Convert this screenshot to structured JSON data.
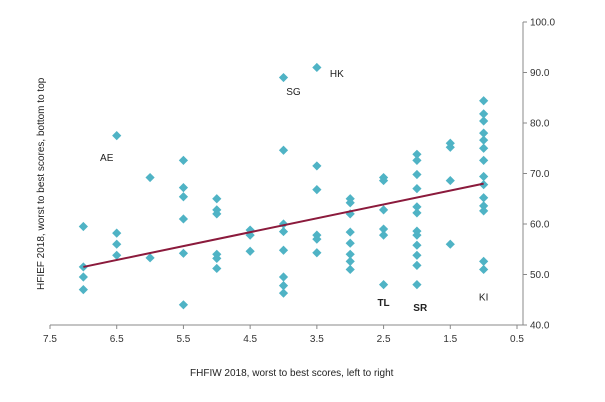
{
  "chart_data": {
    "type": "scatter",
    "xlabel": "FHFIW 2018, worst to best scores, left to right",
    "ylabel": "HFIEF 2018, worst to best scores, bottom to top",
    "xlim": [
      7.5,
      0.5
    ],
    "ylim": [
      40,
      100
    ],
    "x_ticks": [
      "7.5",
      "6.5",
      "5.5",
      "4.5",
      "3.5",
      "2.5",
      "1.5",
      "0.5"
    ],
    "y_ticks": [
      "40.0",
      "50.0",
      "60.0",
      "70.0",
      "80.0",
      "90.0",
      "100.0"
    ],
    "grid": false,
    "colors": {
      "points": "#4fb3c5",
      "trend": "#8b1a3c"
    },
    "series": [
      {
        "marker": "diamond",
        "points": [
          {
            "x": 7,
            "y": 59.5
          },
          {
            "x": 7,
            "y": 51.5
          },
          {
            "x": 7,
            "y": 49.5
          },
          {
            "x": 7,
            "y": 47
          },
          {
            "x": 6.5,
            "y": 77.5
          },
          {
            "x": 6.5,
            "y": 58.2
          },
          {
            "x": 6.5,
            "y": 56
          },
          {
            "x": 6.5,
            "y": 53.8
          },
          {
            "x": 6,
            "y": 69.2
          },
          {
            "x": 6,
            "y": 53.3
          },
          {
            "x": 5.5,
            "y": 72.6
          },
          {
            "x": 5.5,
            "y": 67.2
          },
          {
            "x": 5.5,
            "y": 65.4
          },
          {
            "x": 5.5,
            "y": 61
          },
          {
            "x": 5.5,
            "y": 54.2
          },
          {
            "x": 5.5,
            "y": 44
          },
          {
            "x": 5,
            "y": 65
          },
          {
            "x": 5,
            "y": 62.8
          },
          {
            "x": 5,
            "y": 62
          },
          {
            "x": 5,
            "y": 54
          },
          {
            "x": 5,
            "y": 53.2
          },
          {
            "x": 5,
            "y": 51.2
          },
          {
            "x": 4.5,
            "y": 58.8
          },
          {
            "x": 4.5,
            "y": 57.8
          },
          {
            "x": 4.5,
            "y": 54.6
          },
          {
            "x": 4,
            "y": 89
          },
          {
            "x": 4,
            "y": 74.6
          },
          {
            "x": 4,
            "y": 60
          },
          {
            "x": 4,
            "y": 58.5
          },
          {
            "x": 4,
            "y": 54.8
          },
          {
            "x": 4,
            "y": 49.5
          },
          {
            "x": 4,
            "y": 47.8
          },
          {
            "x": 4,
            "y": 46.3
          },
          {
            "x": 3.5,
            "y": 91
          },
          {
            "x": 3.5,
            "y": 71.5
          },
          {
            "x": 3.5,
            "y": 66.8
          },
          {
            "x": 3.5,
            "y": 57.8
          },
          {
            "x": 3.5,
            "y": 57
          },
          {
            "x": 3.5,
            "y": 54.3
          },
          {
            "x": 3,
            "y": 65
          },
          {
            "x": 3,
            "y": 64.2
          },
          {
            "x": 3,
            "y": 62
          },
          {
            "x": 3,
            "y": 58.4
          },
          {
            "x": 3,
            "y": 56.2
          },
          {
            "x": 3,
            "y": 54
          },
          {
            "x": 3,
            "y": 52.6
          },
          {
            "x": 3,
            "y": 51
          },
          {
            "x": 2.5,
            "y": 69.2
          },
          {
            "x": 2.5,
            "y": 68.6
          },
          {
            "x": 2.5,
            "y": 62.8
          },
          {
            "x": 2.5,
            "y": 59
          },
          {
            "x": 2.5,
            "y": 57.8
          },
          {
            "x": 2.5,
            "y": 48
          },
          {
            "x": 2,
            "y": 73.8
          },
          {
            "x": 2,
            "y": 72.6
          },
          {
            "x": 2,
            "y": 69.8
          },
          {
            "x": 2,
            "y": 67
          },
          {
            "x": 2,
            "y": 63.4
          },
          {
            "x": 2,
            "y": 62.2
          },
          {
            "x": 2,
            "y": 58.6
          },
          {
            "x": 2,
            "y": 57.8
          },
          {
            "x": 2,
            "y": 55.8
          },
          {
            "x": 2,
            "y": 53.8
          },
          {
            "x": 2,
            "y": 51.8
          },
          {
            "x": 2,
            "y": 48
          },
          {
            "x": 1.5,
            "y": 76
          },
          {
            "x": 1.5,
            "y": 75.2
          },
          {
            "x": 1.5,
            "y": 68.6
          },
          {
            "x": 1.5,
            "y": 56
          },
          {
            "x": 1,
            "y": 84.4
          },
          {
            "x": 1,
            "y": 81.8
          },
          {
            "x": 1,
            "y": 80.4
          },
          {
            "x": 1,
            "y": 78
          },
          {
            "x": 1,
            "y": 76.6
          },
          {
            "x": 1,
            "y": 75
          },
          {
            "x": 1,
            "y": 72.6
          },
          {
            "x": 1,
            "y": 69.4
          },
          {
            "x": 1,
            "y": 67.8
          },
          {
            "x": 1,
            "y": 65.2
          },
          {
            "x": 1,
            "y": 63.6
          },
          {
            "x": 1,
            "y": 62.6
          },
          {
            "x": 1,
            "y": 52.6
          },
          {
            "x": 1,
            "y": 51
          }
        ]
      }
    ],
    "trendline": {
      "x": [
        7,
        1
      ],
      "y": [
        51.5,
        68
      ]
    },
    "annotations": [
      {
        "text": "AE",
        "x": 6.65,
        "y": 73.2,
        "bold": false
      },
      {
        "text": "SG",
        "x": 3.85,
        "y": 86.2,
        "bold": false
      },
      {
        "text": "HK",
        "x": 3.2,
        "y": 89.8,
        "bold": false
      },
      {
        "text": "TL",
        "x": 2.5,
        "y": 44.5,
        "bold": true
      },
      {
        "text": "SR",
        "x": 1.95,
        "y": 43.5,
        "bold": true
      },
      {
        "text": "KI",
        "x": 1,
        "y": 45.5,
        "bold": false
      }
    ]
  }
}
